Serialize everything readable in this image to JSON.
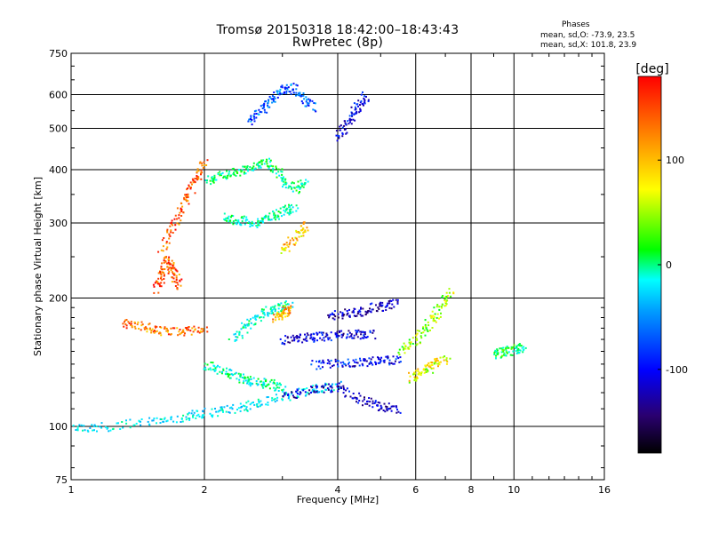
{
  "chart_data": {
    "type": "scatter",
    "title": "Tromsø 20150318 18:42:00–18:43:43",
    "subtitle": "RwPretec (8p)",
    "xlabel": "Frequency [MHz]",
    "ylabel": "Stationary phase Virtual Height [km]",
    "x_scale": "log",
    "y_scale": "log",
    "xlim": [
      1,
      16
    ],
    "ylim": [
      75,
      750
    ],
    "x_ticks": [
      1,
      2,
      4,
      6,
      8,
      10,
      16
    ],
    "y_ticks": [
      75,
      100,
      200,
      300,
      400,
      500,
      600,
      750
    ],
    "grid": true,
    "stats": {
      "title": "Phases",
      "line_o": "mean, sd,O: -73.9, 23.5",
      "line_x": "mean, sd,X: 101.8, 23.9"
    },
    "colorbar": {
      "label": "[deg]",
      "ticks": [
        100,
        0,
        -100
      ],
      "range": [
        -180,
        180
      ],
      "palette": [
        "#000000",
        "#2a0070",
        "#0000ff",
        "#00a0ff",
        "#00ffff",
        "#00ff00",
        "#ffff00",
        "#ff8000",
        "#ff0000"
      ]
    },
    "trace_segments": [
      {
        "name": "bottom-trace",
        "x": [
          1.0,
          1.2,
          1.5,
          1.8,
          2.0,
          2.3,
          2.6,
          3.0,
          3.5,
          4.0
        ],
        "y": [
          100,
          100,
          103,
          106,
          108,
          110,
          113,
          118,
          123,
          125
        ],
        "phase": -10
      },
      {
        "name": "bottom-trace-blue",
        "x": [
          3.0,
          3.5,
          4.0,
          4.5,
          5.0,
          5.5
        ],
        "y": [
          118,
          122,
          124,
          116,
          112,
          110
        ],
        "phase": -110
      },
      {
        "name": "orange-f1",
        "x": [
          1.3,
          1.45,
          1.6,
          1.8,
          2.0
        ],
        "y": [
          175,
          172,
          168,
          168,
          170
        ],
        "phase": 140
      },
      {
        "name": "orange-rise",
        "x": [
          1.55,
          1.6,
          1.65,
          1.7,
          1.75
        ],
        "y": [
          210,
          230,
          250,
          230,
          215
        ],
        "phase": 150
      },
      {
        "name": "orange-high",
        "x": [
          1.6,
          1.7,
          1.8,
          1.9,
          2.0
        ],
        "y": [
          260,
          300,
          340,
          380,
          420
        ],
        "phase": 150
      },
      {
        "name": "cyan-mid",
        "x": [
          2.0,
          2.2,
          2.4,
          2.6,
          2.8,
          3.0
        ],
        "y": [
          140,
          135,
          130,
          128,
          126,
          124
        ],
        "phase": 10
      },
      {
        "name": "cyan-upper",
        "x": [
          2.0,
          2.2,
          2.4,
          2.6,
          2.8,
          3.0,
          3.2,
          3.4
        ],
        "y": [
          380,
          390,
          400,
          410,
          420,
          380,
          360,
          380
        ],
        "phase": 20
      },
      {
        "name": "cyan-300",
        "x": [
          2.2,
          2.4,
          2.6,
          2.8,
          3.0,
          3.2
        ],
        "y": [
          310,
          305,
          300,
          310,
          320,
          330
        ],
        "phase": 15
      },
      {
        "name": "cyan-low-arc",
        "x": [
          2.3,
          2.5,
          2.7,
          2.9,
          3.1
        ],
        "y": [
          160,
          175,
          185,
          190,
          195
        ],
        "phase": 5
      },
      {
        "name": "top-mix",
        "x": [
          2.5,
          2.7,
          2.9,
          3.1,
          3.3,
          3.5
        ],
        "y": [
          520,
          560,
          600,
          630,
          600,
          560
        ],
        "phase": -60
      },
      {
        "name": "blue-165",
        "x": [
          3.0,
          3.3,
          3.6,
          4.0,
          4.4,
          4.8
        ],
        "y": [
          160,
          162,
          163,
          164,
          165,
          165
        ],
        "phase": -100
      },
      {
        "name": "blue-180",
        "x": [
          3.8,
          4.2,
          4.6,
          5.0,
          5.4
        ],
        "y": [
          182,
          185,
          188,
          192,
          196
        ],
        "phase": -110
      },
      {
        "name": "blue-140",
        "x": [
          3.5,
          4.0,
          4.5,
          5.0,
          5.5
        ],
        "y": [
          140,
          141,
          142,
          143,
          144
        ],
        "phase": -90
      },
      {
        "name": "mix-5-7",
        "x": [
          5.5,
          6.0,
          6.4,
          6.8,
          7.2
        ],
        "y": [
          150,
          160,
          175,
          190,
          210
        ],
        "phase": 70
      },
      {
        "name": "yellow-6",
        "x": [
          5.8,
          6.2,
          6.6,
          7.0
        ],
        "y": [
          130,
          135,
          140,
          145
        ],
        "phase": 90
      },
      {
        "name": "x-trace",
        "x": [
          4.0,
          4.2,
          4.4,
          4.6
        ],
        "y": [
          480,
          520,
          560,
          600
        ],
        "phase": -100
      },
      {
        "name": "far-right",
        "x": [
          9.0,
          9.5,
          10.0,
          10.5
        ],
        "y": [
          148,
          150,
          152,
          155
        ],
        "phase": 30
      },
      {
        "name": "scatter-yellow",
        "x": [
          3.0,
          3.2,
          3.4
        ],
        "y": [
          260,
          280,
          300
        ],
        "phase": 110
      },
      {
        "name": "scatter-yellow-2",
        "x": [
          2.9,
          3.0,
          3.1
        ],
        "y": [
          180,
          185,
          190
        ],
        "phase": 120
      }
    ]
  }
}
